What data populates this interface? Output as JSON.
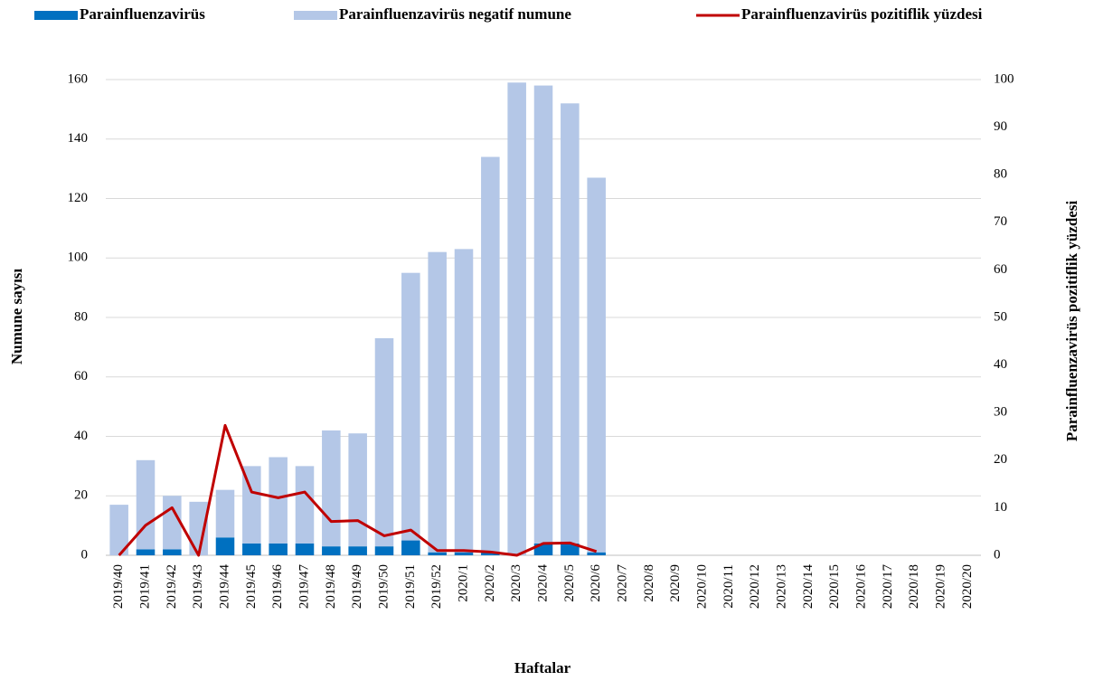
{
  "chart_data": {
    "type": "bar",
    "stacked": true,
    "y_label": "Numune sayısı",
    "y2_label": "Parainfluenzavirüs  pozitiflik yüzdesi",
    "x_label": "Haftalar",
    "categories": [
      "2019/40",
      "2019/41",
      "2019/42",
      "2019/43",
      "2019/44",
      "2019/45",
      "2019/46",
      "2019/47",
      "2019/48",
      "2019/49",
      "2019/50",
      "2019/51",
      "2019/52",
      "2020/1",
      "2020/2",
      "2020/3",
      "2020/4",
      "2020/5",
      "2020/6",
      "2020/7",
      "2020/8",
      "2020/9",
      "2020/10",
      "2020/11",
      "2020/12",
      "2020/13",
      "2020/14",
      "2020/15",
      "2020/16",
      "2020/17",
      "2020/18",
      "2020/19",
      "2020/20"
    ],
    "series": [
      {
        "name": "Parainfluenzavirüs",
        "color": "#0070c0",
        "values": [
          0,
          2,
          2,
          0,
          6,
          4,
          4,
          4,
          3,
          3,
          3,
          5,
          1,
          1,
          1,
          0,
          4,
          4,
          1,
          null,
          null,
          null,
          null,
          null,
          null,
          null,
          null,
          null,
          null,
          null,
          null,
          null,
          null
        ]
      },
      {
        "name": "Parainfluenzavirüs negatif numune",
        "color": "#b4c7e7",
        "values": [
          17,
          30,
          18,
          18,
          16,
          26,
          29,
          26,
          39,
          38,
          70,
          90,
          101,
          102,
          133,
          159,
          154,
          148,
          126,
          null,
          null,
          null,
          null,
          null,
          null,
          null,
          null,
          null,
          null,
          null,
          null,
          null,
          null
        ]
      },
      {
        "name": "Parainfluenzavirüs pozitiflik yüzdesi",
        "color": "#c00000",
        "type": "line",
        "axis": "y2",
        "values": [
          0,
          6.3,
          10,
          0,
          27.3,
          13.3,
          12.1,
          13.3,
          7.1,
          7.3,
          4.1,
          5.3,
          1,
          1,
          0.7,
          0,
          2.5,
          2.6,
          0.8,
          null,
          null,
          null,
          null,
          null,
          null,
          null,
          null,
          null,
          null,
          null,
          null,
          null,
          null
        ]
      }
    ],
    "ylim": [
      0,
      160
    ],
    "yticks": [
      0,
      20,
      40,
      60,
      80,
      100,
      120,
      140,
      160
    ],
    "y2lim": [
      0,
      100
    ],
    "y2ticks": [
      0,
      10,
      20,
      30,
      40,
      50,
      60,
      70,
      80,
      90,
      100
    ],
    "grid": true,
    "legend": "top"
  }
}
